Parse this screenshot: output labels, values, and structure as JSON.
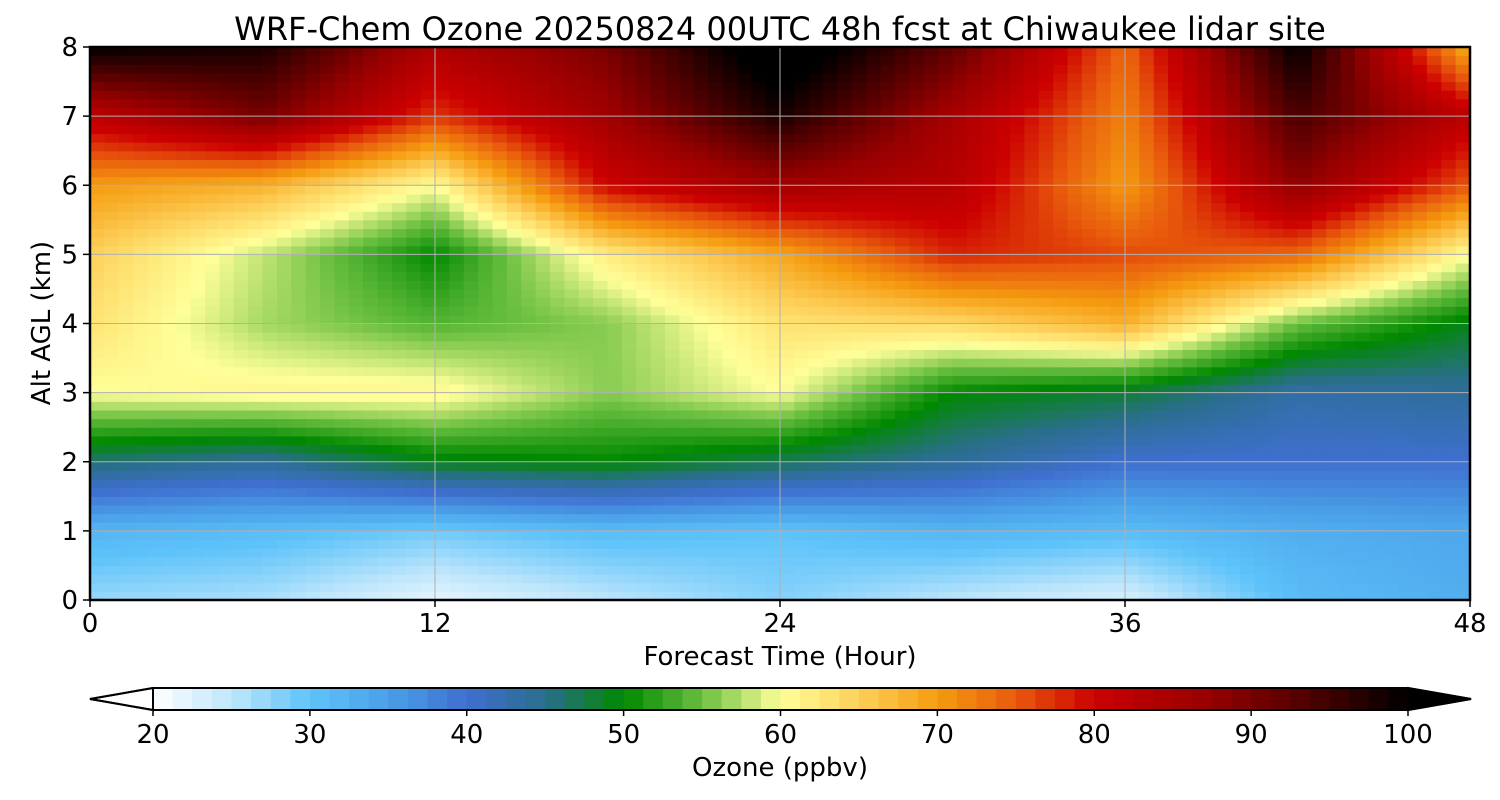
{
  "chart_data": {
    "type": "heatmap",
    "title": "WRF-Chem Ozone  20250824 00UTC 48h fcst at Chiwaukee lidar site",
    "xlabel": "Forecast Time (Hour)",
    "ylabel": "Alt AGL (km)",
    "xlim": [
      0,
      48
    ],
    "ylim": [
      0,
      8
    ],
    "xticks": [
      0,
      12,
      24,
      36,
      48
    ],
    "yticks": [
      0,
      1,
      2,
      3,
      4,
      5,
      6,
      7,
      8
    ],
    "grid": true,
    "x": [
      0,
      6,
      12,
      18,
      24,
      30,
      36,
      42,
      48
    ],
    "y": [
      0,
      1,
      2,
      3,
      4,
      5,
      6,
      7,
      8
    ],
    "z": [
      [
        27,
        26,
        22,
        25,
        28,
        25,
        23,
        31,
        33
      ],
      [
        32,
        31,
        29,
        31,
        30,
        32,
        31,
        33,
        34
      ],
      [
        46,
        44,
        49,
        50,
        47,
        44,
        40,
        40,
        40
      ],
      [
        60,
        61,
        61,
        56,
        60,
        50,
        48,
        43,
        44
      ],
      [
        63,
        57,
        54,
        56,
        63,
        64,
        68,
        55,
        49
      ],
      [
        65,
        58,
        50,
        62,
        69,
        78,
        76,
        74,
        60
      ],
      [
        70,
        68,
        60,
        80,
        86,
        83,
        70,
        88,
        75
      ],
      [
        82,
        90,
        77,
        86,
        98,
        85,
        72,
        94,
        82
      ],
      [
        100,
        98,
        84,
        90,
        104,
        92,
        74,
        100,
        68
      ]
    ],
    "colorbar": {
      "label": "Ozone  (ppbv)",
      "ticks": [
        20,
        30,
        40,
        50,
        60,
        70,
        80,
        90,
        100
      ],
      "range": [
        20,
        100
      ],
      "extend": "both",
      "colors": [
        {
          "v": 20,
          "c": "#ffffff"
        },
        {
          "v": 25,
          "c": "#bfe6fb"
        },
        {
          "v": 30,
          "c": "#5ec3fa"
        },
        {
          "v": 35,
          "c": "#4aa0e8"
        },
        {
          "v": 40,
          "c": "#3f6fd0"
        },
        {
          "v": 45,
          "c": "#2a6e8c"
        },
        {
          "v": 50,
          "c": "#008800"
        },
        {
          "v": 55,
          "c": "#6abf40"
        },
        {
          "v": 60,
          "c": "#ffff99"
        },
        {
          "v": 65,
          "c": "#fdd05a"
        },
        {
          "v": 70,
          "c": "#f59c10"
        },
        {
          "v": 75,
          "c": "#e85a0c"
        },
        {
          "v": 80,
          "c": "#cc0000"
        },
        {
          "v": 87,
          "c": "#990000"
        },
        {
          "v": 94,
          "c": "#4a0000"
        },
        {
          "v": 100,
          "c": "#000000"
        }
      ]
    }
  }
}
